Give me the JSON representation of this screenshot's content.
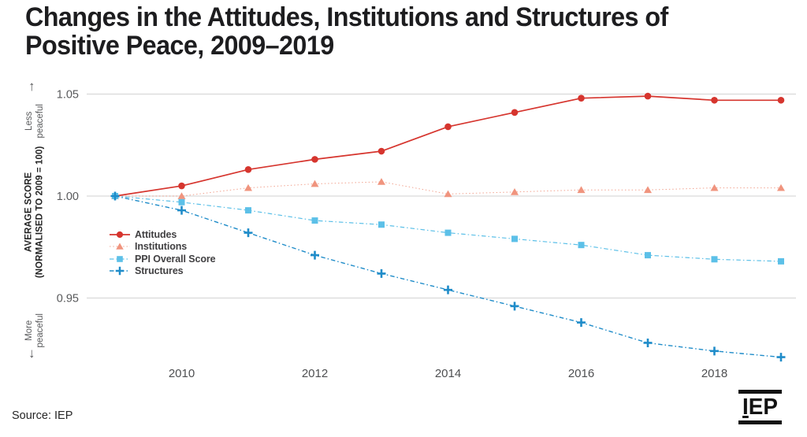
{
  "title": {
    "line1": "Changes in the Attitudes, Institutions and Structures of",
    "line2": "Positive Peace, 2009–2019"
  },
  "axis": {
    "up_arrow": "↑",
    "down_arrow": "↓",
    "top_label": "Less peaceful",
    "bottom_label": "More peaceful",
    "y_title_line1": "AVERAGE SCORE",
    "y_title_line2": "(NORMALISED TO 2009 = 100)"
  },
  "footer": {
    "source": "Source: IEP"
  },
  "logo": {
    "i": "I",
    "ep": "EP"
  },
  "colors": {
    "gridline": "#d9d9d9",
    "y_tick_label": "#58595b",
    "x_tick_label": "#4e4f51",
    "legend_text": "#414042"
  },
  "chart_data": {
    "type": "line",
    "title": "Changes in the Attitudes, Institutions and Structures of Positive Peace, 2009–2019",
    "xlabel": "",
    "ylabel": "AVERAGE SCORE (NORMALISED TO 2009 = 100)",
    "grid": "horizontal",
    "legend_position": "inside-left",
    "x": [
      2009,
      2010,
      2011,
      2012,
      2013,
      2014,
      2015,
      2016,
      2017,
      2018,
      2019
    ],
    "xticks": [
      2010,
      2012,
      2014,
      2016,
      2018
    ],
    "yticks": [
      "1.05",
      "1.00",
      "0.95"
    ],
    "ylim": [
      0.915,
      1.056
    ],
    "series": [
      {
        "name": "Attitudes",
        "color": "#d6352e",
        "marker": "circle",
        "line": "solid",
        "values": [
          1.0,
          1.005,
          1.013,
          1.018,
          1.022,
          1.034,
          1.041,
          1.048,
          1.049,
          1.047,
          1.047
        ]
      },
      {
        "name": "Institutions",
        "color": "#f0947e",
        "marker": "triangle",
        "line": "dotted",
        "values": [
          1.0,
          1.0,
          1.004,
          1.006,
          1.007,
          1.001,
          1.002,
          1.003,
          1.003,
          1.004,
          1.004
        ]
      },
      {
        "name": "PPI Overall Score",
        "color": "#5cc0e8",
        "marker": "square",
        "line": "dashed",
        "values": [
          1.0,
          0.997,
          0.993,
          0.988,
          0.986,
          0.982,
          0.979,
          0.976,
          0.971,
          0.969,
          0.968
        ]
      },
      {
        "name": "Structures",
        "color": "#1f8cc9",
        "marker": "plus",
        "line": "dashdot",
        "values": [
          1.0,
          0.993,
          0.982,
          0.971,
          0.962,
          0.954,
          0.946,
          0.938,
          0.928,
          0.924,
          0.921
        ]
      }
    ]
  }
}
